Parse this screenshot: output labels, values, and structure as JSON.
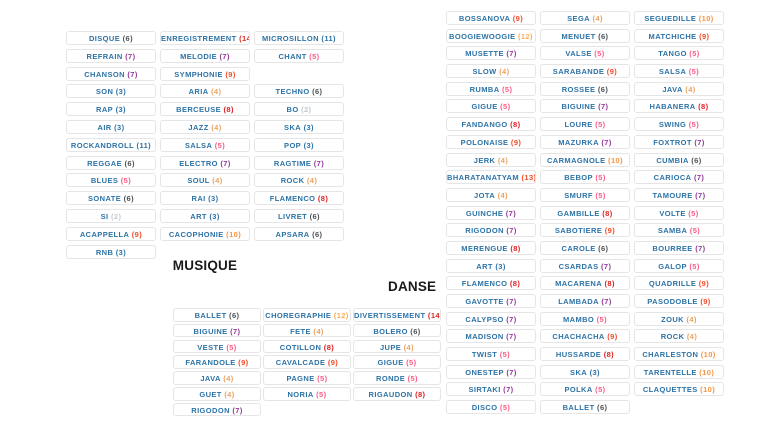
{
  "labels": {
    "musique": "MUSIQUE",
    "danse": "DANSE"
  },
  "styles": {
    "word_color": "#2d73a6",
    "border_color": "#e5e5e5",
    "number_colors": {
      "2": "#bfc9d1",
      "3": "#2d73a6",
      "4": "#e9a35e",
      "5": "#fb5c87",
      "6": "#4d5257",
      "7": "#93399b",
      "8": "#e01e20",
      "9": "#f34a27",
      "10": "#f79440",
      "11": "#2d73a6",
      "12": "#fbab57",
      "13": "#f34a27",
      "14": "#d62a1e"
    }
  },
  "groups": [
    {
      "id": "musique",
      "rows": [
        [
          [
            "DISQUE",
            6
          ],
          [
            "ENREGISTREMENT",
            14
          ],
          [
            "MICROSILLON",
            11
          ]
        ],
        [
          [
            "REFRAIN",
            7
          ],
          [
            "MELODIE",
            7
          ],
          [
            "CHANT",
            5
          ]
        ],
        [
          [
            "CHANSON",
            7
          ],
          [
            "SYMPHONIE",
            9
          ],
          null
        ],
        [
          [
            "SON",
            3
          ],
          [
            "ARIA",
            4
          ],
          [
            "TECHNO",
            6
          ]
        ],
        [
          [
            "RAP",
            3
          ],
          [
            "BERCEUSE",
            8
          ],
          [
            "BO",
            2
          ]
        ],
        [
          [
            "AIR",
            3
          ],
          [
            "JAZZ",
            4
          ],
          [
            "SKA",
            3
          ]
        ],
        [
          [
            "ROCKANDROLL",
            11
          ],
          [
            "SALSA",
            5
          ],
          [
            "POP",
            3
          ]
        ],
        [
          [
            "REGGAE",
            6
          ],
          [
            "ELECTRO",
            7
          ],
          [
            "RAGTIME",
            7
          ]
        ],
        [
          [
            "BLUES",
            5
          ],
          [
            "SOUL",
            4
          ],
          [
            "ROCK",
            4
          ]
        ],
        [
          [
            "SONATE",
            6
          ],
          [
            "RAI",
            3
          ],
          [
            "FLAMENCO",
            8
          ]
        ],
        [
          [
            "SI",
            2
          ],
          [
            "ART",
            3
          ],
          [
            "LIVRET",
            6
          ]
        ],
        [
          [
            "ACAPPELLA",
            9
          ],
          [
            "CACOPHONIE",
            10
          ],
          [
            "APSARA",
            6
          ]
        ],
        [
          [
            "RNB",
            3
          ],
          null,
          null
        ]
      ]
    },
    {
      "id": "danse_bottom",
      "rows": [
        [
          [
            "BALLET",
            6
          ],
          [
            "CHOREGRAPHIE",
            12
          ],
          [
            "DIVERTISSEMENT",
            14
          ]
        ],
        [
          [
            "BIGUINE",
            7
          ],
          [
            "FETE",
            4
          ],
          [
            "BOLERO",
            6
          ]
        ],
        [
          [
            "VESTE",
            5
          ],
          [
            "COTILLON",
            8
          ],
          [
            "JUPE",
            4
          ]
        ],
        [
          [
            "FARANDOLE",
            9
          ],
          [
            "CAVALCADE",
            9
          ],
          [
            "GIGUE",
            5
          ]
        ],
        [
          [
            "JAVA",
            4
          ],
          [
            "PAGNE",
            5
          ],
          [
            "RONDE",
            5
          ]
        ],
        [
          [
            "GUET",
            4
          ],
          [
            "NORIA",
            5
          ],
          [
            "RIGAUDON",
            8
          ]
        ],
        [
          [
            "RIGODON",
            7
          ],
          null,
          null
        ]
      ]
    },
    {
      "id": "danse_right",
      "rows": [
        [
          [
            "BOSSANOVA",
            9
          ],
          [
            "SEGA",
            4
          ],
          [
            "SEGUEDILLE",
            10
          ]
        ],
        [
          [
            "BOOGIEWOOGIE",
            12
          ],
          [
            "MENUET",
            6
          ],
          [
            "MATCHICHE",
            9
          ]
        ],
        [
          [
            "MUSETTE",
            7
          ],
          [
            "VALSE",
            5
          ],
          [
            "TANGO",
            5
          ]
        ],
        [
          [
            "SLOW",
            4
          ],
          [
            "SARABANDE",
            9
          ],
          [
            "SALSA",
            5
          ]
        ],
        [
          [
            "RUMBA",
            5
          ],
          [
            "ROSSEE",
            6
          ],
          [
            "JAVA",
            4
          ]
        ],
        [
          [
            "GIGUE",
            5
          ],
          [
            "BIGUINE",
            7
          ],
          [
            "HABANERA",
            8
          ]
        ],
        [
          [
            "FANDANGO",
            8
          ],
          [
            "LOURE",
            5
          ],
          [
            "SWING",
            5
          ]
        ],
        [
          [
            "POLONAISE",
            9
          ],
          [
            "MAZURKA",
            7
          ],
          [
            "FOXTROT",
            7
          ]
        ],
        [
          [
            "JERK",
            4
          ],
          [
            "CARMAGNOLE",
            10
          ],
          [
            "CUMBIA",
            6
          ]
        ],
        [
          [
            "BHARATANATYAM",
            13
          ],
          [
            "BEBOP",
            5
          ],
          [
            "CARIOCA",
            7
          ]
        ],
        [
          [
            "JOTA",
            4
          ],
          [
            "SMURF",
            5
          ],
          [
            "TAMOURE",
            7
          ]
        ],
        [
          [
            "GUINCHE",
            7
          ],
          [
            "GAMBILLE",
            8
          ],
          [
            "VOLTE",
            5
          ]
        ],
        [
          [
            "RIGODON",
            7
          ],
          [
            "SABOTIERE",
            9
          ],
          [
            "SAMBA",
            5
          ]
        ],
        [
          [
            "MERENGUE",
            8
          ],
          [
            "CAROLE",
            6
          ],
          [
            "BOURREE",
            7
          ]
        ],
        [
          [
            "ART",
            3
          ],
          [
            "CSARDAS",
            7
          ],
          [
            "GALOP",
            5
          ]
        ],
        [
          [
            "FLAMENCO",
            8
          ],
          [
            "MACARENA",
            8
          ],
          [
            "QUADRILLE",
            9
          ]
        ],
        [
          [
            "GAVOTTE",
            7
          ],
          [
            "LAMBADA",
            7
          ],
          [
            "PASODOBLE",
            9
          ]
        ],
        [
          [
            "CALYPSO",
            7
          ],
          [
            "MAMBO",
            5
          ],
          [
            "ZOUK",
            4
          ]
        ],
        [
          [
            "MADISON",
            7
          ],
          [
            "CHACHACHA",
            9
          ],
          [
            "ROCK",
            4
          ]
        ],
        [
          [
            "TWIST",
            5
          ],
          [
            "HUSSARDE",
            8
          ],
          [
            "CHARLESTON",
            10
          ]
        ],
        [
          [
            "ONESTEP",
            7
          ],
          [
            "SKA",
            3
          ],
          [
            "TARENTELLE",
            10
          ]
        ],
        [
          [
            "SIRTAKI",
            7
          ],
          [
            "POLKA",
            5
          ],
          [
            "CLAQUETTES",
            10
          ]
        ],
        [
          [
            "DISCO",
            5
          ],
          [
            "BALLET",
            6
          ],
          null
        ]
      ]
    }
  ]
}
